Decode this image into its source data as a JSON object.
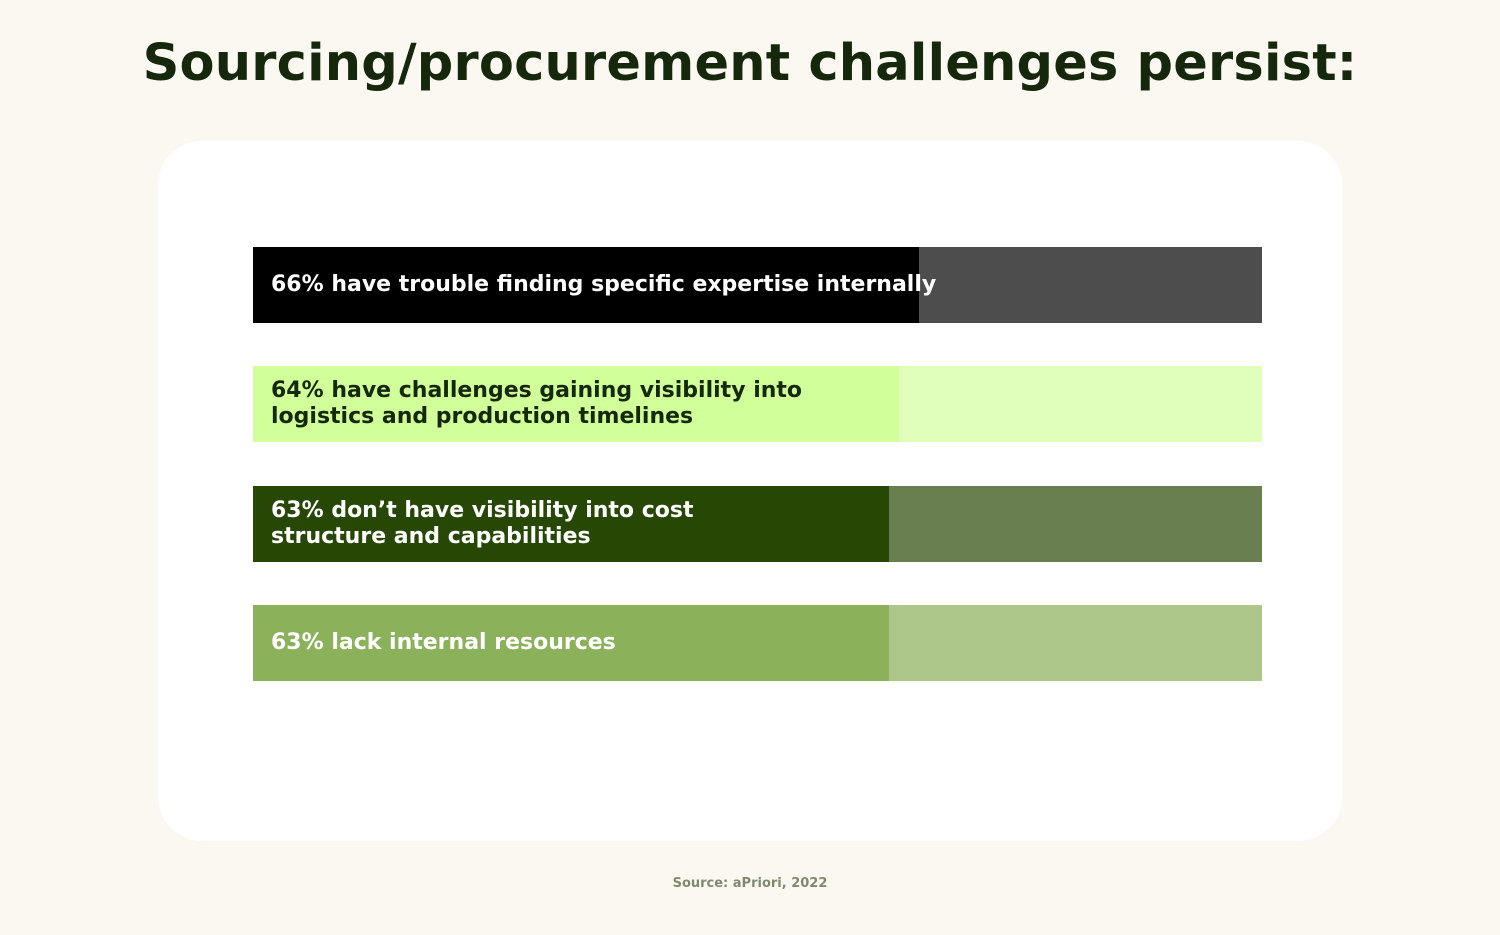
{
  "title": "Sourcing/procurement challenges persist:",
  "source": "Source: aPriori, 2022",
  "chart_data": {
    "type": "bar",
    "orientation": "horizontal",
    "title": "Sourcing/procurement challenges persist:",
    "xlim": [
      0,
      100
    ],
    "grid": false,
    "bars": [
      {
        "label": "66% have trouble finding specific expertise internally",
        "value": 66,
        "fill_color": "#000000",
        "track_color": "#4d4d4d",
        "text_color": "#ffffff"
      },
      {
        "label": "64% have challenges gaining visibility into\nlogistics and production timelines",
        "value": 64,
        "fill_color": "#d1ff9a",
        "track_color": "#dfffbb",
        "text_color": "#16280b"
      },
      {
        "label": "63% don’t have visibility into cost\nstructure and capabilities",
        "value": 63,
        "fill_color": "#274705",
        "track_color": "#6a7f4f",
        "text_color": "#ffffff"
      },
      {
        "label": "63% lack internal resources",
        "value": 63,
        "fill_color": "#8bb15b",
        "track_color": "#adc78a",
        "text_color": "#ffffff"
      }
    ]
  }
}
